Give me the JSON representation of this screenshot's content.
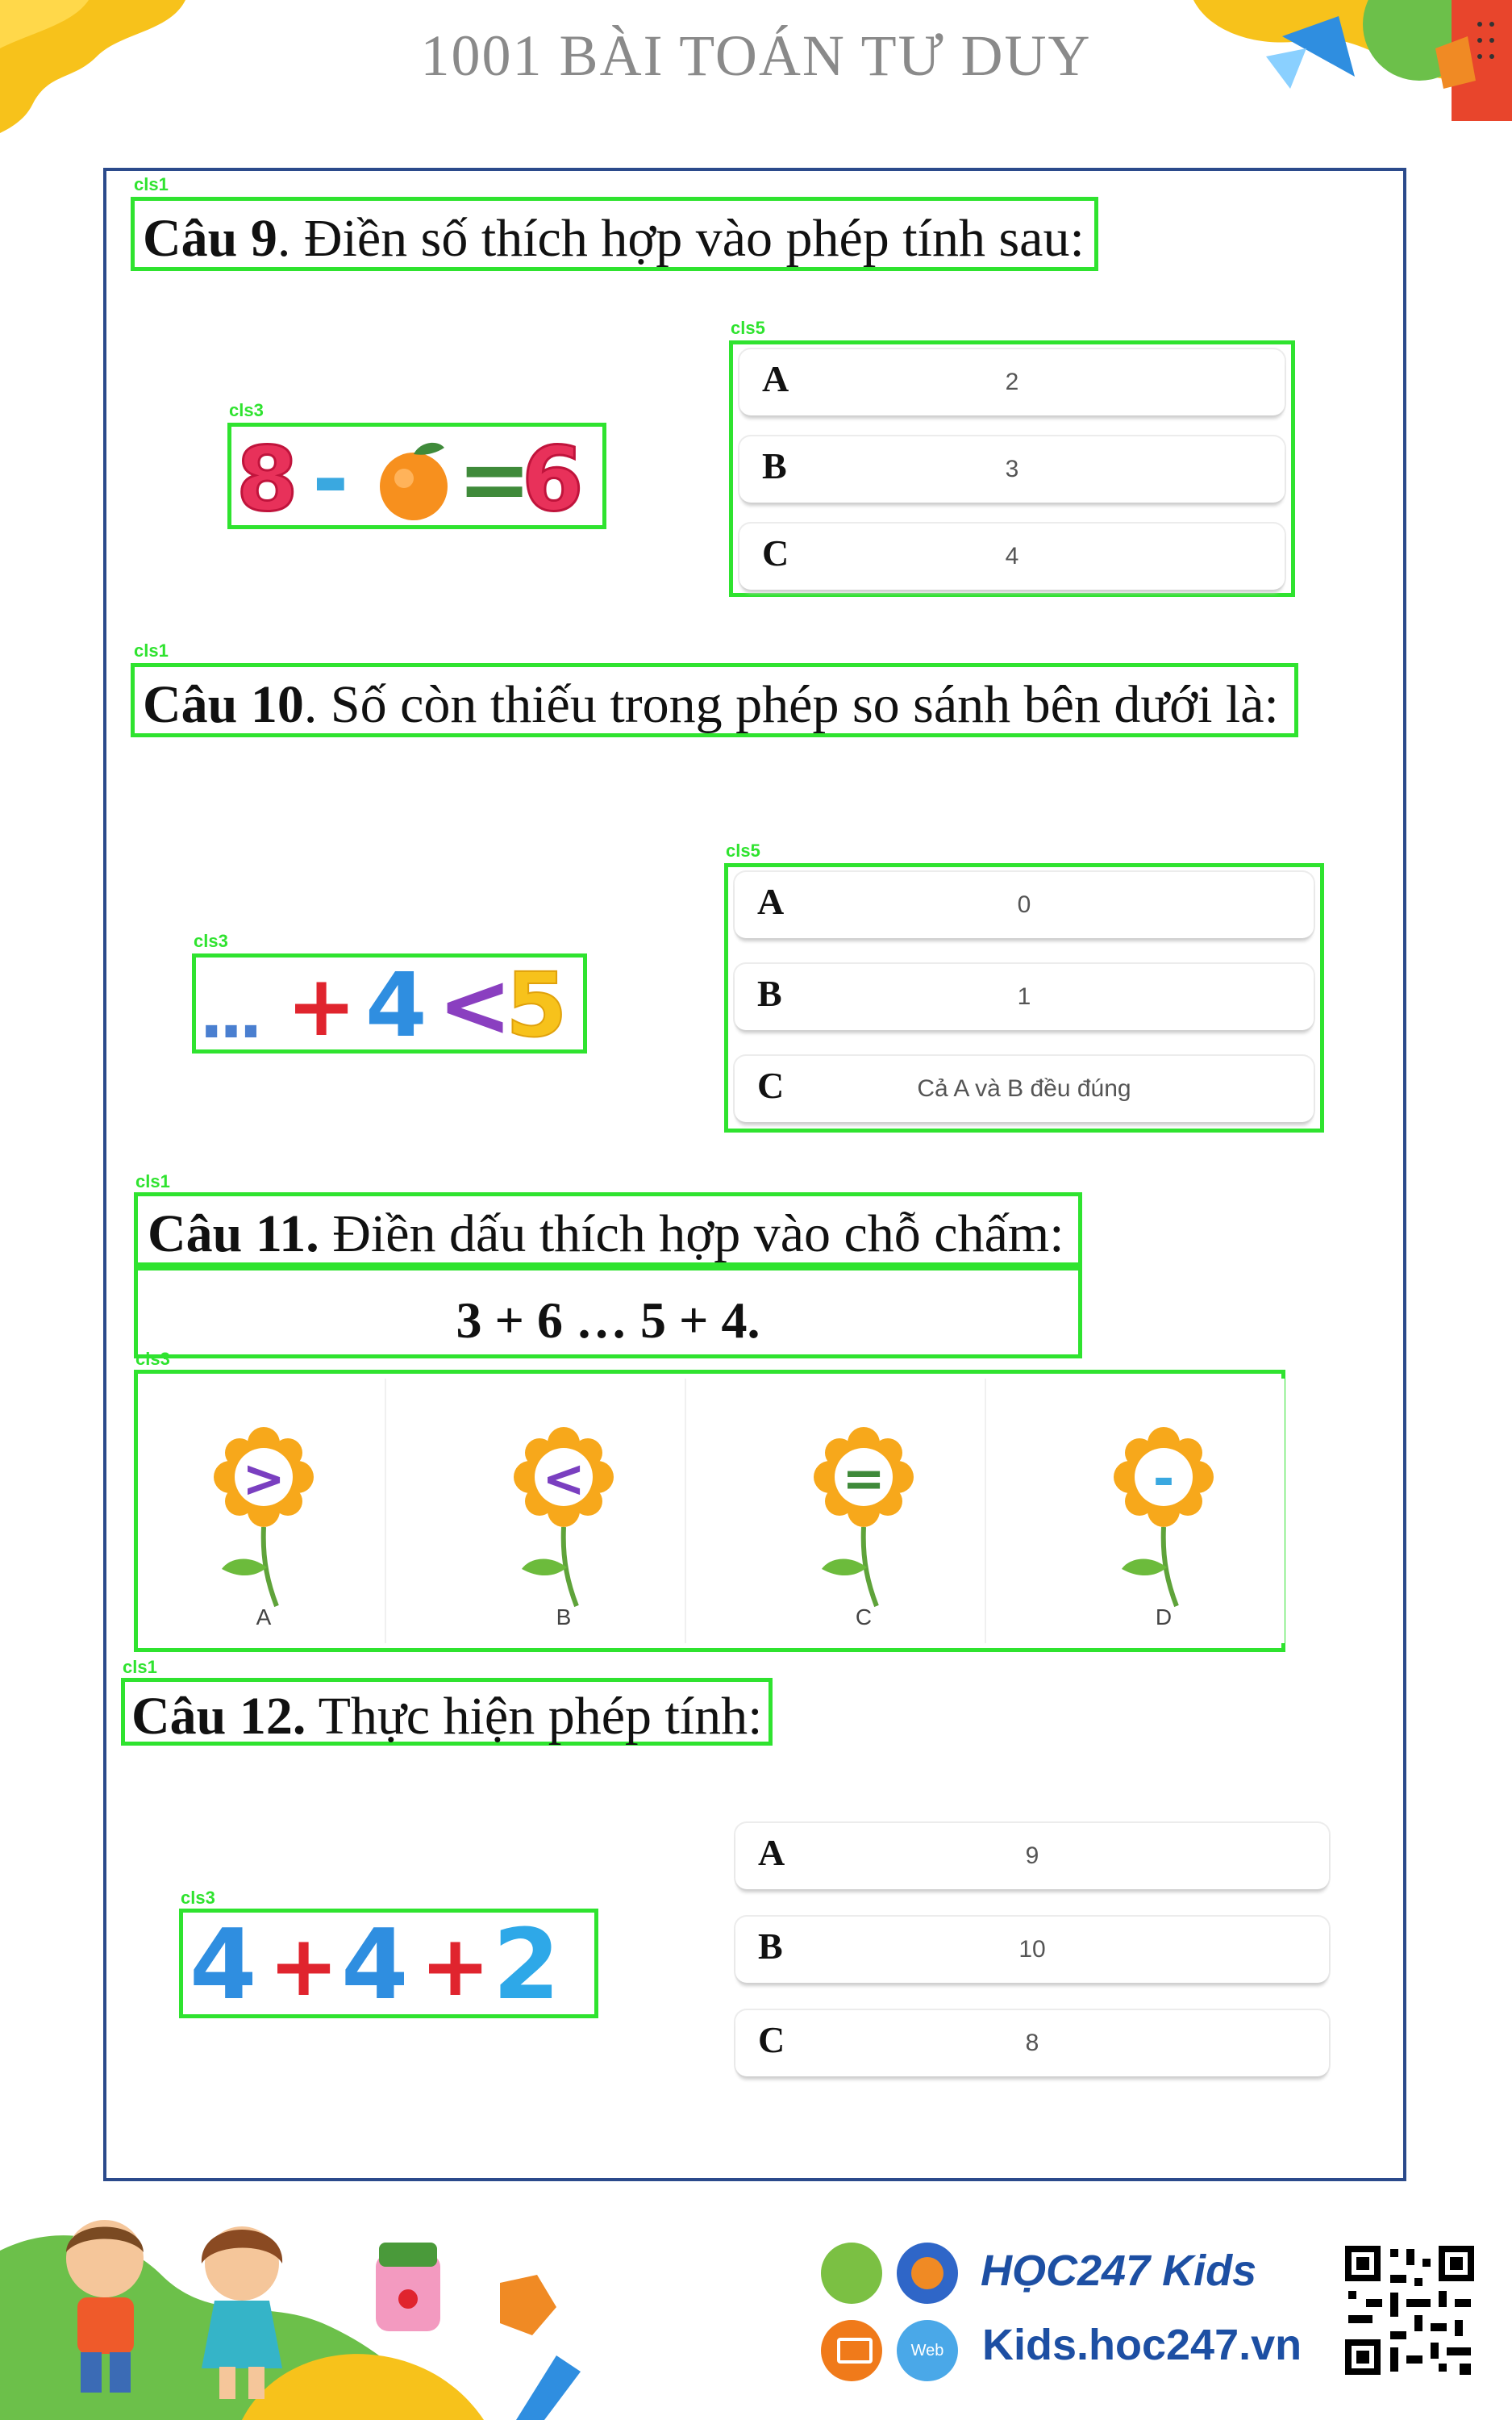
{
  "header": {
    "title": "1001 BÀI TOÁN TƯ DUY"
  },
  "tags": {
    "question": "cls1",
    "image": "cls3",
    "options": "cls5"
  },
  "q9": {
    "num": "Câu 9",
    "text": ". Điền số thích hợp vào phép tính sau:",
    "expr": {
      "left": "8",
      "minus": "-",
      "eq": "=",
      "right": "6"
    },
    "options": [
      {
        "letter": "A",
        "value": "2"
      },
      {
        "letter": "B",
        "value": "3"
      },
      {
        "letter": "C",
        "value": "4"
      }
    ]
  },
  "q10": {
    "num": "Câu 10",
    "text": ". Số còn thiếu trong phép so sánh bên dưới là:",
    "expr": {
      "dots": "...",
      "plus": "+",
      "a": "4",
      "lt": "<",
      "b": "5"
    },
    "options": [
      {
        "letter": "A",
        "value": "0"
      },
      {
        "letter": "B",
        "value": "1"
      },
      {
        "letter": "C",
        "value": "Cả A và B đều đúng"
      }
    ]
  },
  "q11": {
    "num": "Câu 11.",
    "text": " Điền dấu thích hợp vào chỗ chấm:",
    "expr": "3 + 6 … 5 + 4.",
    "options": [
      {
        "label": "A",
        "symbol": ">",
        "color": "#7a3fc0"
      },
      {
        "label": "B",
        "symbol": "<",
        "color": "#7a3fc0"
      },
      {
        "label": "C",
        "symbol": "=",
        "color": "#3f8a3a"
      },
      {
        "label": "D",
        "symbol": "-",
        "color": "#3aa8e0"
      }
    ]
  },
  "q12": {
    "num": "Câu 12.",
    "text": " Thực hiện phép tính:",
    "expr": {
      "a": "4",
      "p1": "+",
      "b": "4",
      "p2": "+",
      "c": "2"
    },
    "options": [
      {
        "letter": "A",
        "value": "9"
      },
      {
        "letter": "B",
        "value": "10"
      },
      {
        "letter": "C",
        "value": "8"
      }
    ]
  },
  "footer": {
    "brand": "HỌC247 Kids",
    "url": "Kids.hoc247.vn",
    "web_badge": "Web"
  }
}
